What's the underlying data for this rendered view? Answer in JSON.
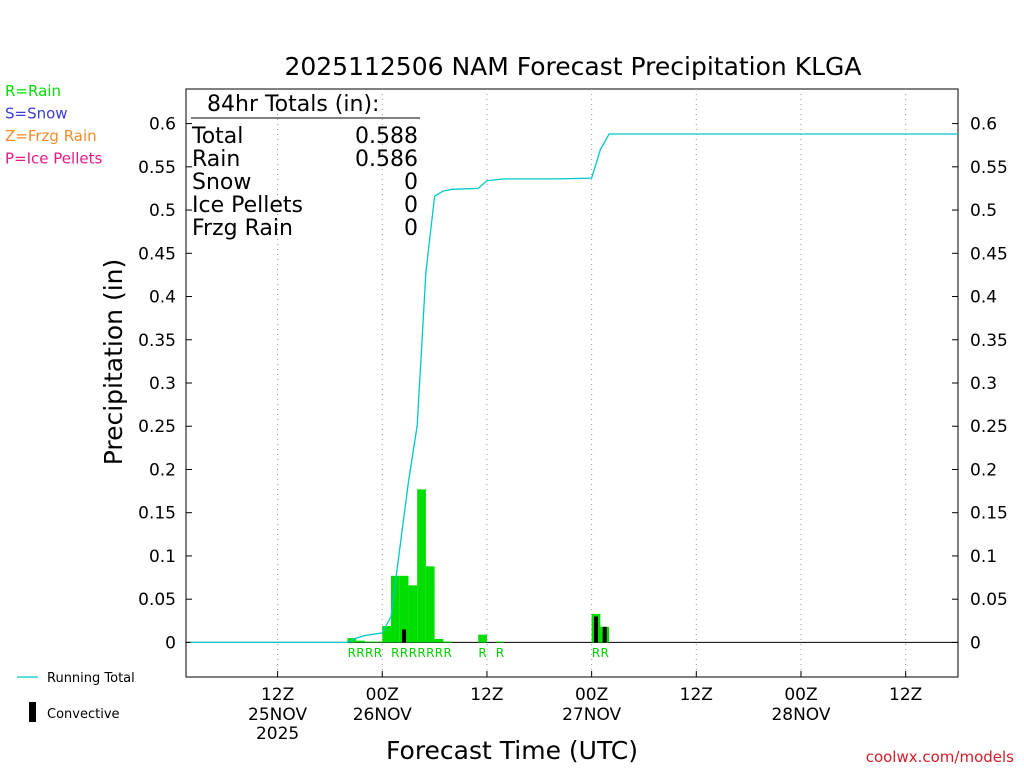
{
  "chart_data": {
    "type": "bar",
    "title": "2025112506 NAM Forecast Precipitation KLGA",
    "xlabel": "Forecast Time (UTC)",
    "ylabel": "Precipitation (in)",
    "ylim": [
      -0.04,
      0.64
    ],
    "yticks": [
      0,
      0.05,
      0.1,
      0.15,
      0.2,
      0.25,
      0.3,
      0.35,
      0.4,
      0.45,
      0.5,
      0.55,
      0.6
    ],
    "ytick_labels": [
      "0",
      "0.05",
      "0.1",
      "0.15",
      "0.2",
      "0.25",
      "0.3",
      "0.35",
      "0.4",
      "0.45",
      "0.5",
      "0.55",
      "0.6"
    ],
    "xlim": [
      -4.5,
      84
    ],
    "xticks": [
      {
        "hour": 6,
        "label": "12Z",
        "date": "25NOV",
        "year": "2025"
      },
      {
        "hour": 18,
        "label": "00Z",
        "date": "26NOV",
        "year": ""
      },
      {
        "hour": 30,
        "label": "12Z",
        "date": "",
        "year": ""
      },
      {
        "hour": 42,
        "label": "00Z",
        "date": "27NOV",
        "year": ""
      },
      {
        "hour": 54,
        "label": "12Z",
        "date": "",
        "year": ""
      },
      {
        "hour": 66,
        "label": "00Z",
        "date": "28NOV",
        "year": ""
      },
      {
        "hour": 78,
        "label": "12Z",
        "date": "",
        "year": ""
      }
    ],
    "grid": "vertical dotted",
    "series": [
      {
        "name": "Rain",
        "color": "#00dd00",
        "points": [
          {
            "hour": 15,
            "value": 0.005
          },
          {
            "hour": 16,
            "value": 0.002
          },
          {
            "hour": 17,
            "value": 0.001
          },
          {
            "hour": 18,
            "value": 0.001
          },
          {
            "hour": 19,
            "value": 0.019
          },
          {
            "hour": 20,
            "value": 0.077
          },
          {
            "hour": 21,
            "value": 0.077
          },
          {
            "hour": 22,
            "value": 0.066
          },
          {
            "hour": 23,
            "value": 0.177
          },
          {
            "hour": 24,
            "value": 0.088
          },
          {
            "hour": 25,
            "value": 0.004
          },
          {
            "hour": 26,
            "value": 0.001
          },
          {
            "hour": 30,
            "value": 0.009
          },
          {
            "hour": 32,
            "value": 0.001
          },
          {
            "hour": 43,
            "value": 0.033
          },
          {
            "hour": 44,
            "value": 0.018
          }
        ]
      },
      {
        "name": "Convective",
        "color": "#000000",
        "points": [
          {
            "hour": 21,
            "value": 0.015
          },
          {
            "hour": 43,
            "value": 0.03
          },
          {
            "hour": 44,
            "value": 0.018
          }
        ]
      },
      {
        "name": "Running Total",
        "color": "#00c8c8",
        "type": "line",
        "points": [
          {
            "hour": -4,
            "value": 0
          },
          {
            "hour": 14,
            "value": 0
          },
          {
            "hour": 15,
            "value": 0.005
          },
          {
            "hour": 16,
            "value": 0.008
          },
          {
            "hour": 18,
            "value": 0.011
          },
          {
            "hour": 19,
            "value": 0.03
          },
          {
            "hour": 20,
            "value": 0.108
          },
          {
            "hour": 21,
            "value": 0.185
          },
          {
            "hour": 22,
            "value": 0.251
          },
          {
            "hour": 23,
            "value": 0.428
          },
          {
            "hour": 24,
            "value": 0.516
          },
          {
            "hour": 25,
            "value": 0.522
          },
          {
            "hour": 26,
            "value": 0.524
          },
          {
            "hour": 29,
            "value": 0.525
          },
          {
            "hour": 30,
            "value": 0.534
          },
          {
            "hour": 32,
            "value": 0.536
          },
          {
            "hour": 38,
            "value": 0.536
          },
          {
            "hour": 42,
            "value": 0.537
          },
          {
            "hour": 43,
            "value": 0.57
          },
          {
            "hour": 44,
            "value": 0.588
          },
          {
            "hour": 84,
            "value": 0.588
          }
        ]
      }
    ],
    "ptype_labels": [
      {
        "hour": 15,
        "text": "R"
      },
      {
        "hour": 16,
        "text": "R"
      },
      {
        "hour": 17,
        "text": "R"
      },
      {
        "hour": 18,
        "text": "R"
      },
      {
        "hour": 20,
        "text": "R"
      },
      {
        "hour": 21,
        "text": "R"
      },
      {
        "hour": 22,
        "text": "R"
      },
      {
        "hour": 23,
        "text": "R"
      },
      {
        "hour": 24,
        "text": "R"
      },
      {
        "hour": 25,
        "text": "R"
      },
      {
        "hour": 26,
        "text": "R"
      },
      {
        "hour": 30,
        "text": "R"
      },
      {
        "hour": 32,
        "text": "R"
      },
      {
        "hour": 43,
        "text": "R"
      },
      {
        "hour": 44,
        "text": "R"
      }
    ],
    "totals": {
      "header": "84hr Totals (in):",
      "rows": [
        {
          "label": "Total",
          "value": "0.588"
        },
        {
          "label": "Rain",
          "value": "0.586"
        },
        {
          "label": "Snow",
          "value": "0"
        },
        {
          "label": "Ice Pellets",
          "value": "0"
        },
        {
          "label": "Frzg Rain",
          "value": "0"
        }
      ]
    },
    "ptype_key": [
      {
        "text": "R=Rain",
        "color": "#00dd00"
      },
      {
        "text": "S=Snow",
        "color": "#3c3cdc"
      },
      {
        "text": "Z=Frzg Rain",
        "color": "#f08c28"
      },
      {
        "text": "P=Ice Pellets",
        "color": "#e6198c"
      }
    ],
    "legend": {
      "running_total": "Running Total",
      "convective": "Convective"
    },
    "credit": "coolwx.com/models"
  }
}
